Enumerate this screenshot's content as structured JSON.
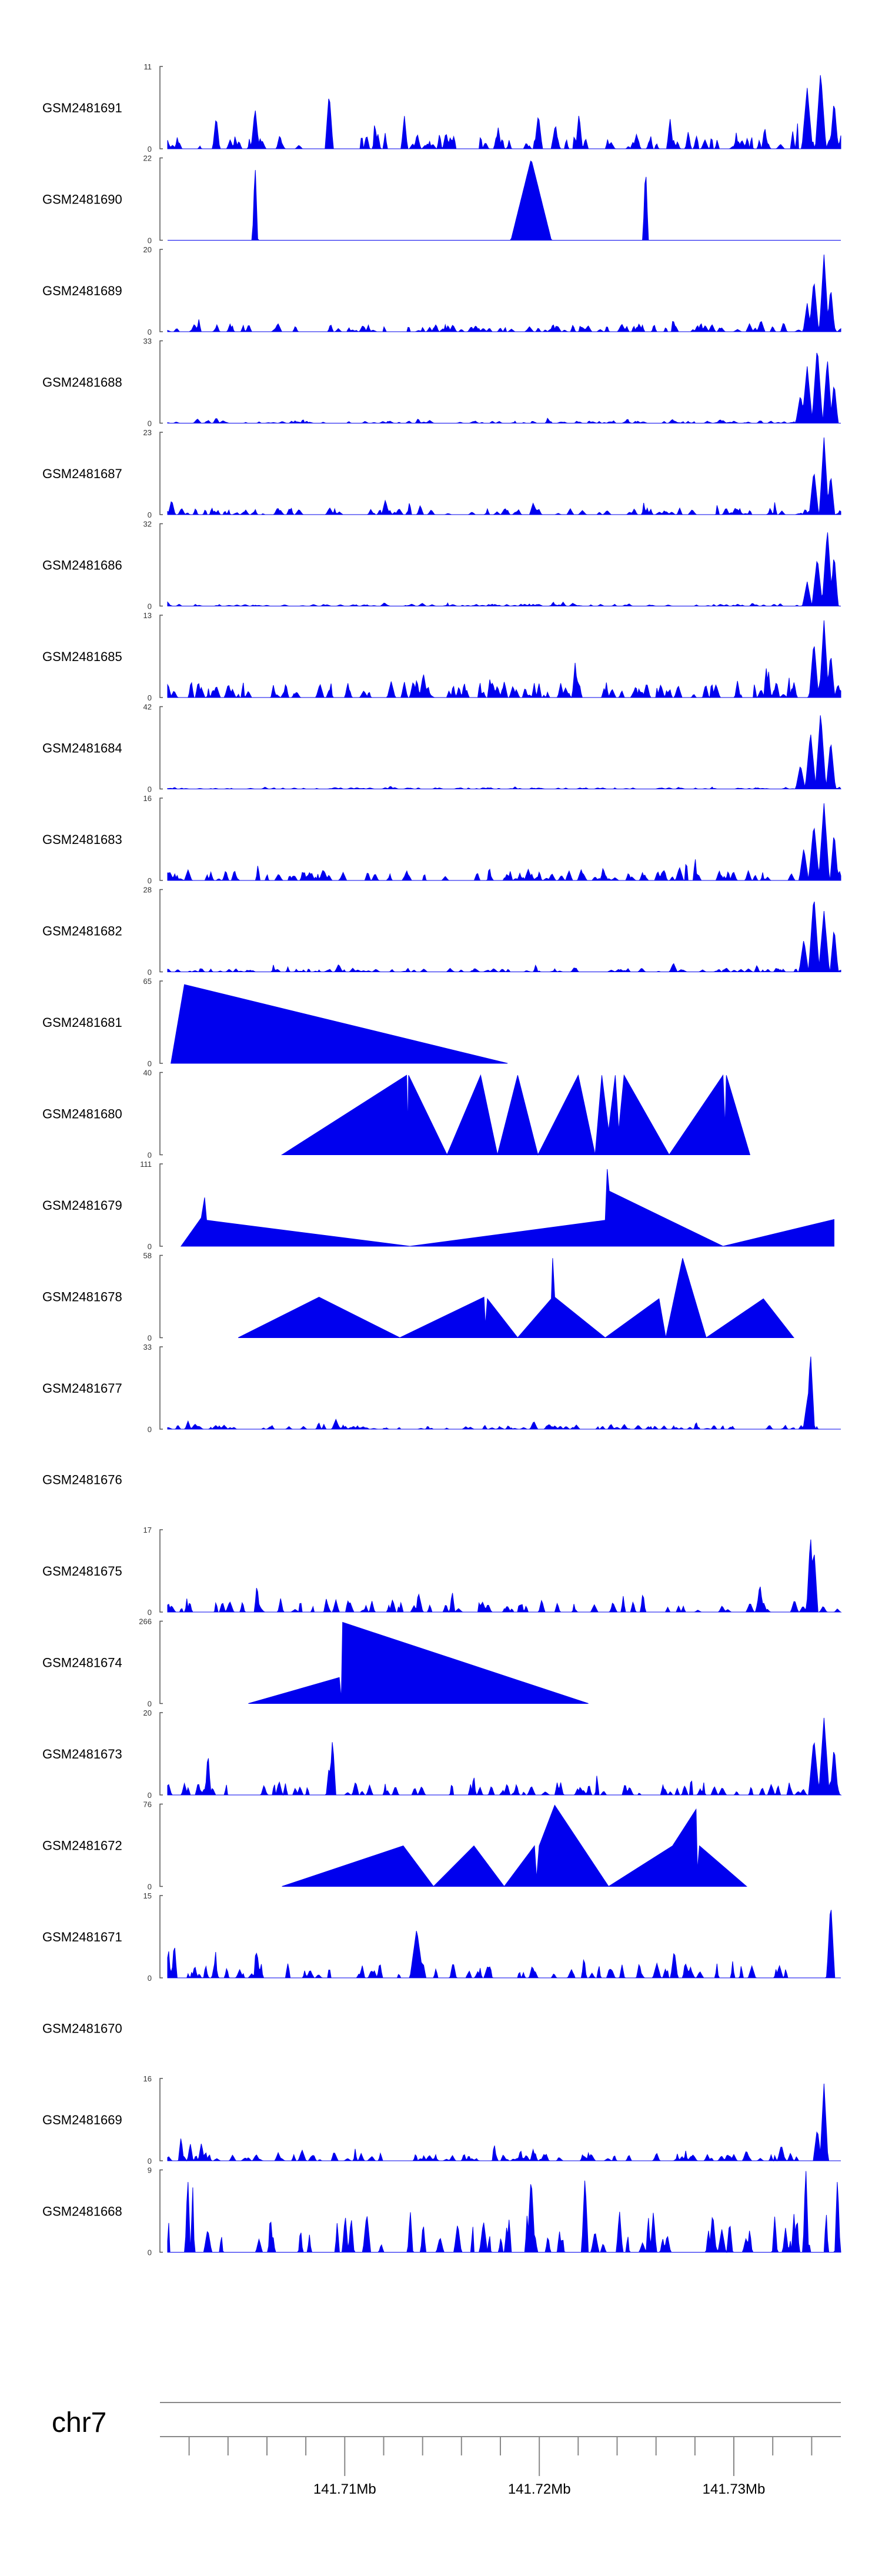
{
  "chart_data": {
    "type": "area",
    "title": "",
    "chromosome": "chr7",
    "fill_color": "#0000ee",
    "x_axis": {
      "range_mb": [
        141.7005,
        141.7355
      ],
      "major_ticks": [
        {
          "value": 141.71,
          "label": "141.71Mb"
        },
        {
          "value": 141.72,
          "label": "141.72Mb"
        },
        {
          "value": 141.73,
          "label": "141.73Mb"
        }
      ],
      "minor_tick_step_mb": 0.002
    },
    "tracks": [
      {
        "name": "GSM2481691",
        "ymax": 11,
        "ymin_label": "0",
        "ymax_label": "11",
        "style": "dense",
        "start": 0.0,
        "end": 1.0,
        "base": 0.12,
        "seed": 11,
        "n": 95,
        "peaks": [
          [
            0.97,
            0.95,
            0.008
          ],
          [
            0.95,
            0.75,
            0.008
          ],
          [
            0.99,
            0.6,
            0.006
          ],
          [
            0.24,
            0.7,
            0.006
          ],
          [
            0.13,
            0.5,
            0.006
          ]
        ]
      },
      {
        "name": "GSM2481690",
        "ymax": 22,
        "ymin_label": "0",
        "ymax_label": "22",
        "style": "sparse",
        "start": 0.0,
        "end": 1.0,
        "base": 0.0,
        "seed": 7,
        "n": 20,
        "peaks": [
          [
            0.13,
            0.95,
            0.004
          ],
          [
            0.54,
            1.0,
            0.03
          ],
          [
            0.71,
            0.95,
            0.004
          ]
        ]
      },
      {
        "name": "GSM2481689",
        "ymax": 20,
        "ymin_label": "0",
        "ymax_label": "20",
        "style": "dense",
        "start": 0.0,
        "end": 1.0,
        "base": 0.06,
        "seed": 23,
        "n": 110,
        "peaks": [
          [
            0.975,
            0.95,
            0.007
          ],
          [
            0.96,
            0.65,
            0.007
          ],
          [
            0.985,
            0.55,
            0.006
          ],
          [
            0.95,
            0.35,
            0.006
          ]
        ]
      },
      {
        "name": "GSM2481688",
        "ymax": 33,
        "ymin_label": "0",
        "ymax_label": "33",
        "style": "dense",
        "start": 0.0,
        "end": 1.0,
        "base": 0.02,
        "seed": 31,
        "n": 110,
        "peaks": [
          [
            0.965,
            0.95,
            0.008
          ],
          [
            0.95,
            0.7,
            0.008
          ],
          [
            0.98,
            0.8,
            0.007
          ],
          [
            0.99,
            0.5,
            0.006
          ],
          [
            0.94,
            0.35,
            0.007
          ]
        ]
      },
      {
        "name": "GSM2481687",
        "ymax": 23,
        "ymin_label": "0",
        "ymax_label": "23",
        "style": "dense",
        "start": 0.0,
        "end": 1.0,
        "base": 0.05,
        "seed": 41,
        "n": 110,
        "peaks": [
          [
            0.975,
            0.95,
            0.007
          ],
          [
            0.96,
            0.55,
            0.007
          ],
          [
            0.985,
            0.5,
            0.006
          ]
        ]
      },
      {
        "name": "GSM2481686",
        "ymax": 32,
        "ymin_label": "0",
        "ymax_label": "32",
        "style": "dense",
        "start": 0.0,
        "end": 1.0,
        "base": 0.015,
        "seed": 53,
        "n": 110,
        "peaks": [
          [
            0.98,
            0.95,
            0.008
          ],
          [
            0.965,
            0.6,
            0.008
          ],
          [
            0.99,
            0.65,
            0.006
          ],
          [
            0.95,
            0.3,
            0.007
          ]
        ]
      },
      {
        "name": "GSM2481685",
        "ymax": 13,
        "ymin_label": "0",
        "ymax_label": "13",
        "style": "dense",
        "start": 0.0,
        "end": 1.0,
        "base": 0.12,
        "seed": 67,
        "n": 110,
        "peaks": [
          [
            0.975,
            0.95,
            0.007
          ],
          [
            0.96,
            0.7,
            0.007
          ],
          [
            0.985,
            0.55,
            0.006
          ],
          [
            0.38,
            0.3,
            0.006
          ]
        ]
      },
      {
        "name": "GSM2481684",
        "ymax": 42,
        "ymin_label": "0",
        "ymax_label": "42",
        "style": "dense",
        "start": 0.0,
        "end": 1.0,
        "base": 0.01,
        "seed": 79,
        "n": 110,
        "peaks": [
          [
            0.97,
            0.95,
            0.008
          ],
          [
            0.955,
            0.7,
            0.008
          ],
          [
            0.985,
            0.6,
            0.007
          ],
          [
            0.94,
            0.3,
            0.007
          ]
        ]
      },
      {
        "name": "GSM2481683",
        "ymax": 16,
        "ymin_label": "0",
        "ymax_label": "16",
        "style": "dense",
        "start": 0.0,
        "end": 1.0,
        "base": 0.08,
        "seed": 83,
        "n": 110,
        "peaks": [
          [
            0.975,
            0.95,
            0.008
          ],
          [
            0.96,
            0.7,
            0.008
          ],
          [
            0.99,
            0.6,
            0.006
          ],
          [
            0.945,
            0.4,
            0.007
          ]
        ]
      },
      {
        "name": "GSM2481682",
        "ymax": 28,
        "ymin_label": "0",
        "ymax_label": "28",
        "style": "dense",
        "start": 0.0,
        "end": 1.0,
        "base": 0.03,
        "seed": 97,
        "n": 110,
        "peaks": [
          [
            0.96,
            0.95,
            0.008
          ],
          [
            0.975,
            0.75,
            0.008
          ],
          [
            0.99,
            0.55,
            0.006
          ],
          [
            0.945,
            0.4,
            0.007
          ]
        ]
      },
      {
        "name": "GSM2481681",
        "ymax": 65,
        "ymin_label": "0",
        "ymax_label": "65",
        "style": "points",
        "points": [
          [
            0.005,
            0.0
          ],
          [
            0.025,
            0.97
          ],
          [
            0.505,
            0.0
          ]
        ]
      },
      {
        "name": "GSM2481680",
        "ymax": 40,
        "ymin_label": "0",
        "ymax_label": "40",
        "style": "points",
        "points": [
          [
            0.17,
            0.0
          ],
          [
            0.355,
            0.98
          ],
          [
            0.357,
            0.35
          ],
          [
            0.358,
            0.98
          ],
          [
            0.415,
            0.0
          ],
          [
            0.465,
            0.98
          ],
          [
            0.49,
            0.0
          ],
          [
            0.52,
            0.98
          ],
          [
            0.55,
            0.0
          ],
          [
            0.61,
            0.98
          ],
          [
            0.635,
            0.0
          ],
          [
            0.645,
            0.98
          ],
          [
            0.655,
            0.3
          ],
          [
            0.665,
            0.98
          ],
          [
            0.67,
            0.3
          ],
          [
            0.678,
            0.98
          ],
          [
            0.745,
            0.0
          ],
          [
            0.825,
            0.98
          ],
          [
            0.828,
            0.35
          ],
          [
            0.83,
            0.98
          ],
          [
            0.865,
            0.0
          ]
        ]
      },
      {
        "name": "GSM2481679",
        "ymax": 111,
        "ymin_label": "0",
        "ymax_label": "111",
        "style": "points",
        "points": [
          [
            0.02,
            0.0
          ],
          [
            0.05,
            0.35
          ],
          [
            0.055,
            0.6
          ],
          [
            0.058,
            0.32
          ],
          [
            0.36,
            0.0
          ],
          [
            0.65,
            0.32
          ],
          [
            0.653,
            0.95
          ],
          [
            0.656,
            0.68
          ],
          [
            0.825,
            0.0
          ],
          [
            0.99,
            0.33
          ],
          [
            0.99,
            0.0
          ]
        ]
      },
      {
        "name": "GSM2481678",
        "ymax": 58,
        "ymin_label": "0",
        "ymax_label": "58",
        "style": "points",
        "points": [
          [
            0.105,
            0.0
          ],
          [
            0.225,
            0.5
          ],
          [
            0.345,
            0.0
          ],
          [
            0.47,
            0.5
          ],
          [
            0.472,
            0.15
          ],
          [
            0.475,
            0.48
          ],
          [
            0.52,
            0.0
          ],
          [
            0.57,
            0.48
          ],
          [
            0.572,
            0.98
          ],
          [
            0.575,
            0.5
          ],
          [
            0.65,
            0.0
          ],
          [
            0.73,
            0.48
          ],
          [
            0.74,
            0.0
          ],
          [
            0.765,
            0.98
          ],
          [
            0.8,
            0.0
          ],
          [
            0.885,
            0.48
          ],
          [
            0.93,
            0.0
          ]
        ]
      },
      {
        "name": "GSM2481677",
        "ymax": 33,
        "ymin_label": "0",
        "ymax_label": "33",
        "style": "dense",
        "start": 0.0,
        "end": 1.0,
        "base": 0.03,
        "seed": 109,
        "n": 110,
        "peaks": [
          [
            0.955,
            0.95,
            0.006
          ],
          [
            0.95,
            0.35,
            0.006
          ],
          [
            0.25,
            0.12,
            0.006
          ]
        ]
      },
      {
        "name": "GSM2481676",
        "ymax": null,
        "ymin_label": "",
        "ymax_label": "",
        "style": "empty"
      },
      {
        "name": "GSM2481675",
        "ymax": 17,
        "ymin_label": "0",
        "ymax_label": "17",
        "style": "dense",
        "start": 0.0,
        "end": 1.0,
        "base": 0.1,
        "seed": 127,
        "n": 80,
        "peaks": [
          [
            0.955,
            0.95,
            0.006
          ],
          [
            0.96,
            0.8,
            0.006
          ]
        ]
      },
      {
        "name": "GSM2481674",
        "ymax": 266,
        "ymin_label": "0",
        "ymax_label": "266",
        "style": "points",
        "points": [
          [
            0.12,
            0.0
          ],
          [
            0.255,
            0.32
          ],
          [
            0.258,
            0.06
          ],
          [
            0.26,
            1.0
          ],
          [
            0.625,
            0.0
          ]
        ]
      },
      {
        "name": "GSM2481673",
        "ymax": 20,
        "ymin_label": "0",
        "ymax_label": "20",
        "style": "dense",
        "start": 0.0,
        "end": 1.0,
        "base": 0.1,
        "seed": 139,
        "n": 80,
        "peaks": [
          [
            0.975,
            0.95,
            0.008
          ],
          [
            0.96,
            0.7,
            0.008
          ],
          [
            0.99,
            0.6,
            0.006
          ],
          [
            0.245,
            0.7,
            0.005
          ],
          [
            0.06,
            0.55,
            0.004
          ]
        ]
      },
      {
        "name": "GSM2481672",
        "ymax": 76,
        "ymin_label": "0",
        "ymax_label": "76",
        "style": "points",
        "points": [
          [
            0.17,
            0.0
          ],
          [
            0.35,
            0.5
          ],
          [
            0.395,
            0.0
          ],
          [
            0.455,
            0.5
          ],
          [
            0.5,
            0.0
          ],
          [
            0.545,
            0.5
          ],
          [
            0.548,
            0.1
          ],
          [
            0.552,
            0.5
          ],
          [
            0.575,
            1.0
          ],
          [
            0.655,
            0.0
          ],
          [
            0.75,
            0.5
          ],
          [
            0.785,
            0.95
          ],
          [
            0.787,
            0.2
          ],
          [
            0.79,
            0.5
          ],
          [
            0.86,
            0.0
          ]
        ]
      },
      {
        "name": "GSM2481671",
        "ymax": 15,
        "ymin_label": "0",
        "ymax_label": "15",
        "style": "dense",
        "start": 0.0,
        "end": 1.0,
        "base": 0.12,
        "seed": 151,
        "n": 80,
        "peaks": [
          [
            0.985,
            0.95,
            0.006
          ],
          [
            0.37,
            0.6,
            0.01
          ],
          [
            0.01,
            0.45,
            0.004
          ]
        ]
      },
      {
        "name": "GSM2481670",
        "ymax": null,
        "ymin_label": "",
        "ymax_label": "",
        "style": "empty"
      },
      {
        "name": "GSM2481669",
        "ymax": 16,
        "ymin_label": "0",
        "ymax_label": "16",
        "style": "dense",
        "start": 0.0,
        "end": 1.0,
        "base": 0.06,
        "seed": 163,
        "n": 110,
        "peaks": [
          [
            0.975,
            0.95,
            0.006
          ],
          [
            0.965,
            0.4,
            0.006
          ],
          [
            0.02,
            0.3,
            0.004
          ]
        ]
      },
      {
        "name": "GSM2481668",
        "ymax": 9,
        "ymin_label": "0",
        "ymax_label": "9",
        "style": "dense",
        "start": 0.0,
        "end": 1.0,
        "base": 0.3,
        "seed": 181,
        "n": 55,
        "peaks": [
          [
            0.03,
            0.95,
            0.004
          ],
          [
            0.54,
            0.95,
            0.006
          ],
          [
            0.62,
            0.95,
            0.005
          ],
          [
            0.995,
            0.95,
            0.004
          ]
        ]
      }
    ]
  }
}
